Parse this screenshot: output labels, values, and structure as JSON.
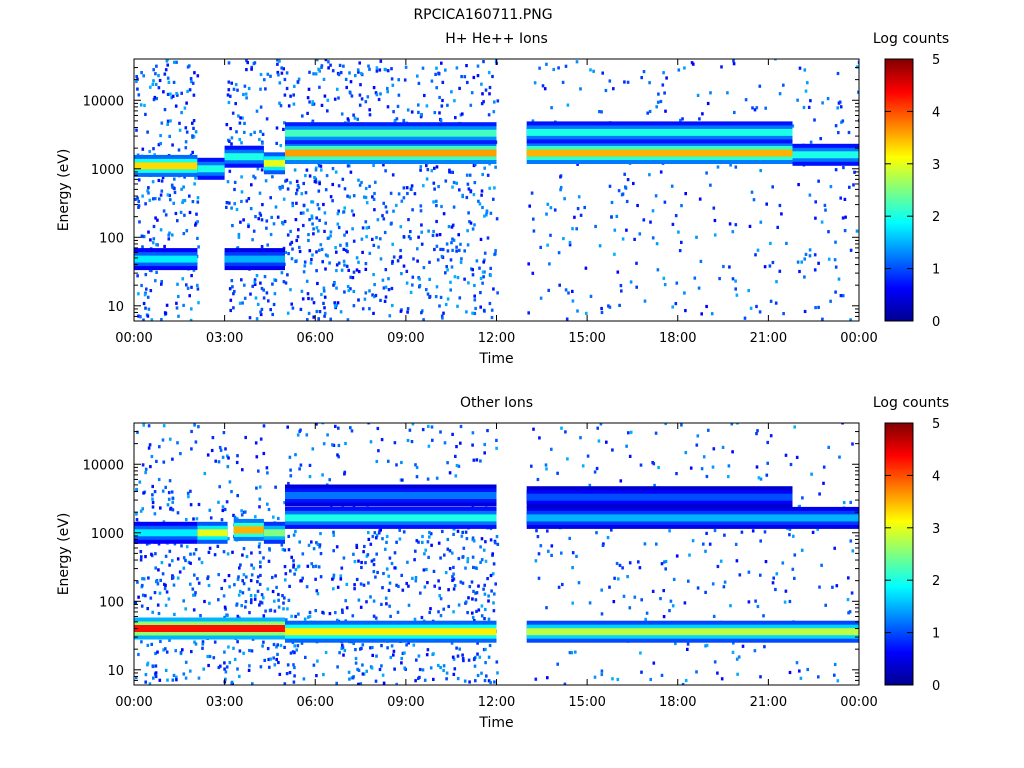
{
  "figure_title": "RPCICA160711.PNG",
  "chart_data": [
    {
      "type": "heatmap",
      "title": "H+ He++ Ions",
      "xlabel": "Time",
      "ylabel": "Energy (eV)",
      "y_scale": "log",
      "ylim": [
        6,
        40000
      ],
      "xlim_hours": [
        0,
        24
      ],
      "xticks": [
        "00:00",
        "03:00",
        "06:00",
        "09:00",
        "12:00",
        "15:00",
        "18:00",
        "21:00",
        "00:00"
      ],
      "yticks": [
        10,
        100,
        1000,
        10000
      ],
      "ytick_labels": [
        "10",
        "100",
        "1000",
        "10000"
      ],
      "colorbar": {
        "label": "Log counts",
        "range": [
          0,
          5
        ],
        "ticks": [
          "0",
          "1",
          "2",
          "3",
          "4",
          "5"
        ]
      },
      "data_gaps_hours": [
        [
          2.1,
          3.0
        ],
        [
          12.0,
          13.0
        ]
      ],
      "bands": [
        {
          "t_hours": [
            0.0,
            2.1
          ],
          "energy_ev": 1100,
          "log_counts": 3.3
        },
        {
          "t_hours": [
            2.1,
            3.0
          ],
          "energy_ev": 1000,
          "log_counts": 2.0
        },
        {
          "t_hours": [
            3.0,
            4.3
          ],
          "energy_ev": 1500,
          "log_counts": 2.0
        },
        {
          "t_hours": [
            4.3,
            5.0
          ],
          "energy_ev": 1200,
          "log_counts": 3.0
        },
        {
          "t_hours": [
            5.0,
            12.0
          ],
          "energy_ev": 1700,
          "log_counts": 3.6
        },
        {
          "t_hours": [
            5.0,
            12.0
          ],
          "energy_ev": 3300,
          "log_counts": 2.2
        },
        {
          "t_hours": [
            13.0,
            21.8
          ],
          "energy_ev": 1700,
          "log_counts": 3.5
        },
        {
          "t_hours": [
            13.0,
            21.8
          ],
          "energy_ev": 3400,
          "log_counts": 2.0
        },
        {
          "t_hours": [
            21.8,
            24.0
          ],
          "energy_ev": 1600,
          "log_counts": 2.0
        },
        {
          "t_hours": [
            0.0,
            2.1
          ],
          "energy_ev": 48,
          "log_counts": 1.8
        },
        {
          "t_hours": [
            3.0,
            5.0
          ],
          "energy_ev": 48,
          "log_counts": 1.5
        }
      ]
    },
    {
      "type": "heatmap",
      "title": "Other Ions",
      "xlabel": "Time",
      "ylabel": "Energy (eV)",
      "y_scale": "log",
      "ylim": [
        6,
        40000
      ],
      "xlim_hours": [
        0,
        24
      ],
      "xticks": [
        "00:00",
        "03:00",
        "06:00",
        "09:00",
        "12:00",
        "15:00",
        "18:00",
        "21:00",
        "00:00"
      ],
      "yticks": [
        10,
        100,
        1000,
        10000
      ],
      "ytick_labels": [
        "10",
        "100",
        "1000",
        "10000"
      ],
      "colorbar": {
        "label": "Log counts",
        "range": [
          0,
          5
        ],
        "ticks": [
          "0",
          "1",
          "2",
          "3",
          "4",
          "5"
        ]
      },
      "data_gaps_hours": [
        [
          12.0,
          13.0
        ]
      ],
      "bands": [
        {
          "t_hours": [
            0.0,
            2.1
          ],
          "energy_ev": 1000,
          "log_counts": 1.8
        },
        {
          "t_hours": [
            2.1,
            3.1
          ],
          "energy_ev": 1000,
          "log_counts": 3.0
        },
        {
          "t_hours": [
            3.3,
            4.3
          ],
          "energy_ev": 1100,
          "log_counts": 3.5
        },
        {
          "t_hours": [
            4.3,
            5.0
          ],
          "energy_ev": 1000,
          "log_counts": 2.5
        },
        {
          "t_hours": [
            5.0,
            12.0
          ],
          "energy_ev": 1650,
          "log_counts": 2.0
        },
        {
          "t_hours": [
            5.0,
            12.0
          ],
          "energy_ev": 3500,
          "log_counts": 1.2
        },
        {
          "t_hours": [
            13.0,
            24.0
          ],
          "energy_ev": 1650,
          "log_counts": 1.5
        },
        {
          "t_hours": [
            13.0,
            21.8
          ],
          "energy_ev": 3300,
          "log_counts": 1.0
        },
        {
          "t_hours": [
            0.0,
            5.0
          ],
          "energy_ev": 40,
          "log_counts": 4.3
        },
        {
          "t_hours": [
            5.0,
            12.0
          ],
          "energy_ev": 36,
          "log_counts": 3.2
        },
        {
          "t_hours": [
            13.0,
            24.0
          ],
          "energy_ev": 36,
          "log_counts": 2.8
        }
      ]
    }
  ]
}
